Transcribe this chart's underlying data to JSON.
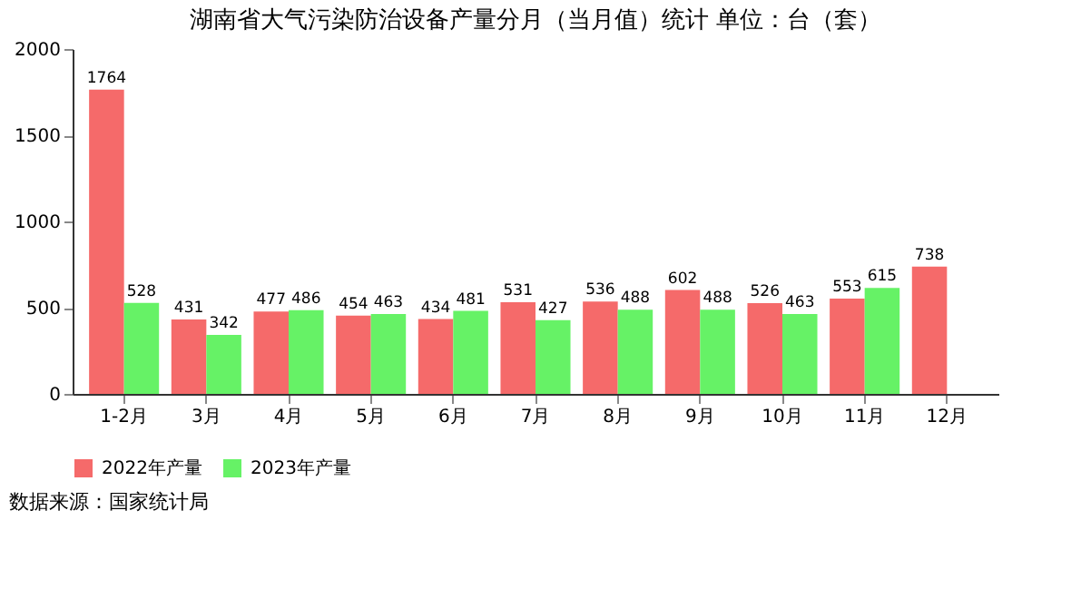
{
  "chart_data": {
    "type": "bar",
    "title": "湖南省大气污染防治设备产量分月（当月值）统计 单位：台（套）",
    "categories": [
      "1-2月",
      "3月",
      "4月",
      "5月",
      "6月",
      "7月",
      "8月",
      "9月",
      "10月",
      "11月",
      "12月"
    ],
    "series": [
      {
        "name": "2022年产量",
        "color": "#f56a6a",
        "values": [
          1764,
          431,
          477,
          454,
          434,
          531,
          536,
          602,
          526,
          553,
          738
        ]
      },
      {
        "name": "2023年产量",
        "color": "#66f266",
        "values": [
          528,
          342,
          486,
          463,
          481,
          427,
          488,
          488,
          463,
          615,
          null
        ]
      }
    ],
    "ylim": [
      0,
      2000
    ],
    "yticks": [
      0,
      500,
      1000,
      1500,
      2000
    ],
    "grid": false,
    "legend": "bottom",
    "data_labels": true,
    "annotations": [
      "数据来源：国家统计局"
    ]
  }
}
